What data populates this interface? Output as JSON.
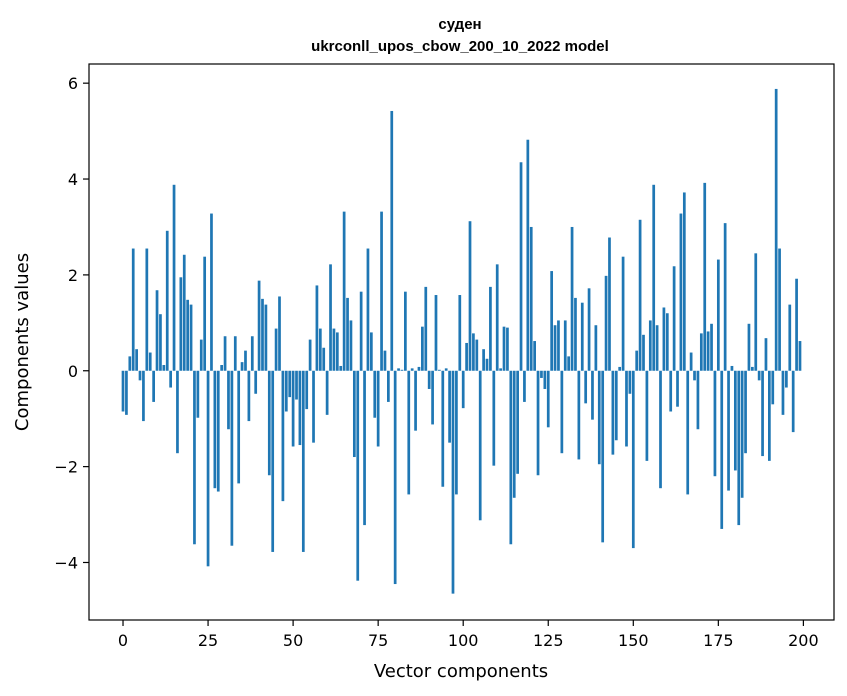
{
  "chart_data": {
    "type": "bar",
    "title_line1": "суден",
    "title_line2": "ukrconll_upos_cbow_200_10_2022 model",
    "xlabel": "Vector components",
    "ylabel": "Components values",
    "xlim": [
      -10,
      209
    ],
    "ylim": [
      -5.2,
      6.4
    ],
    "xticks": [
      0,
      25,
      50,
      75,
      100,
      125,
      150,
      175,
      200
    ],
    "yticks": [
      -4,
      -2,
      0,
      2,
      4,
      6
    ],
    "ytick_labels": [
      "−4",
      "−2",
      "0",
      "2",
      "4",
      "6"
    ],
    "bar_color": "#1f77b4",
    "grid": false,
    "values": [
      -0.85,
      -0.92,
      0.3,
      2.55,
      0.45,
      -0.2,
      -1.05,
      2.55,
      0.38,
      -0.65,
      1.68,
      1.18,
      0.12,
      2.92,
      -0.35,
      3.88,
      -1.72,
      1.95,
      2.42,
      1.48,
      1.38,
      -3.62,
      -0.98,
      0.65,
      2.38,
      -4.08,
      3.28,
      -2.45,
      -2.52,
      0.12,
      0.72,
      -1.22,
      -3.65,
      0.72,
      -2.35,
      0.18,
      0.42,
      -1.05,
      0.72,
      -0.48,
      1.88,
      1.5,
      1.38,
      -2.18,
      -3.78,
      0.88,
      1.55,
      -2.72,
      -0.85,
      -0.55,
      -1.58,
      -0.6,
      -1.55,
      -3.78,
      -0.8,
      0.65,
      -1.5,
      1.78,
      0.88,
      0.48,
      -0.92,
      2.22,
      0.88,
      0.8,
      0.1,
      3.32,
      1.52,
      1.05,
      -1.8,
      -4.38,
      1.65,
      -3.22,
      2.55,
      0.8,
      -0.98,
      -1.58,
      3.32,
      0.42,
      -0.65,
      5.42,
      -4.45,
      0.05,
      0.02,
      1.65,
      -2.58,
      0.05,
      -1.25,
      0.08,
      0.92,
      1.75,
      -0.38,
      -1.12,
      1.58,
      0.02,
      -2.42,
      0.05,
      -1.5,
      -4.65,
      -2.58,
      1.58,
      -0.78,
      0.58,
      3.12,
      0.78,
      0.65,
      -3.12,
      0.45,
      0.25,
      1.75,
      -1.98,
      2.22,
      0.05,
      0.92,
      0.9,
      -3.62,
      -2.65,
      -2.15,
      4.35,
      -0.65,
      4.82,
      3.0,
      0.62,
      -2.18,
      -0.15,
      -0.38,
      -1.18,
      2.08,
      0.95,
      1.05,
      -1.72,
      1.05,
      0.3,
      3.0,
      1.52,
      -1.85,
      1.42,
      -0.68,
      1.72,
      -1.02,
      0.95,
      -1.95,
      -3.58,
      1.98,
      2.78,
      -1.75,
      -1.45,
      0.08,
      2.38,
      -1.58,
      -0.48,
      -3.7,
      0.42,
      3.15,
      0.75,
      -1.88,
      1.05,
      3.88,
      0.95,
      -2.45,
      1.32,
      1.2,
      -0.85,
      2.18,
      -0.75,
      3.28,
      3.72,
      -2.58,
      0.38,
      -0.2,
      -1.22,
      0.78,
      3.92,
      0.82,
      0.98,
      -2.2,
      2.32,
      -3.3,
      3.08,
      -2.5,
      0.1,
      -2.08,
      -3.22,
      -2.65,
      -1.72,
      0.98,
      0.08,
      2.45,
      -0.2,
      -1.78,
      0.68,
      -1.88,
      -0.7,
      5.88,
      2.55,
      -0.92,
      -0.35,
      1.38,
      -1.28,
      1.92,
      0.62
    ]
  }
}
